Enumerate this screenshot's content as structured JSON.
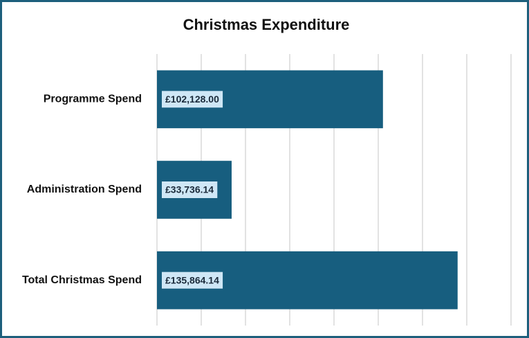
{
  "chart_data": {
    "type": "bar",
    "orientation": "horizontal",
    "title": "Christmas Expenditure",
    "categories": [
      "Programme Spend",
      "Administration Spend",
      "Total Christmas Spend"
    ],
    "values": [
      102128.0,
      33736.14,
      135864.14
    ],
    "value_labels": [
      "£102,128.00",
      "£33,736.14",
      "£135,864.14"
    ],
    "color": "#175e7f",
    "xlim": [
      0,
      160000
    ],
    "xticks": [
      0,
      20000,
      40000,
      60000,
      80000,
      100000,
      120000,
      140000,
      160000
    ],
    "grid": true
  }
}
